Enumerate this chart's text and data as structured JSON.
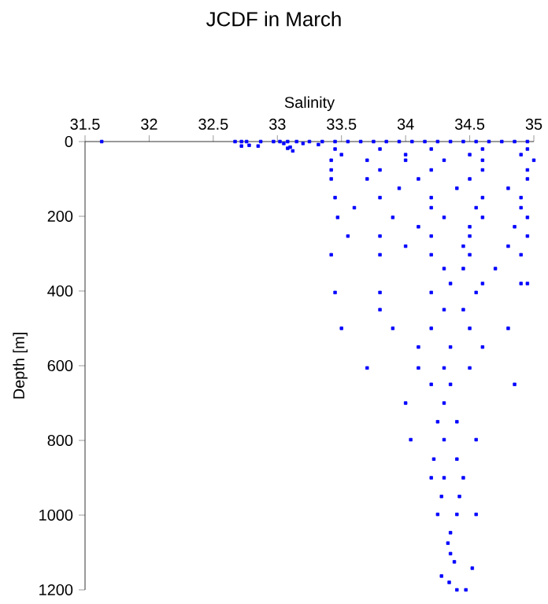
{
  "chart_data": {
    "type": "scatter",
    "title": "JCDF in March",
    "xlabel": "Salinity",
    "ylabel": "Depth [m]",
    "color": "#0000ff",
    "marker": "square",
    "grid": false,
    "xlim": [
      31.5,
      35
    ],
    "xticks": [
      31.5,
      32,
      32.5,
      33,
      33.5,
      34,
      34.5,
      35
    ],
    "ylim": [
      1200,
      0
    ],
    "yticks": [
      0,
      200,
      400,
      600,
      800,
      1000,
      1200
    ],
    "x": [
      31.63,
      32.67,
      32.72,
      32.76,
      32.87,
      32.97,
      33.02,
      33.08,
      33.15,
      33.25,
      33.35,
      33.45,
      33.55,
      33.65,
      33.75,
      33.85,
      33.95,
      34.05,
      34.15,
      34.25,
      34.35,
      34.45,
      34.55,
      34.65,
      34.75,
      34.85,
      34.95,
      32.72,
      32.78,
      32.85,
      33.05,
      33.08,
      33.12,
      33.1,
      33.32,
      33.2,
      33.45,
      33.8,
      34.2,
      34.6,
      34.95,
      33.5,
      34.0,
      34.5,
      34.9,
      33.42,
      33.7,
      34.0,
      34.3,
      34.6,
      35.0,
      33.42,
      33.8,
      34.2,
      34.6,
      34.95,
      33.42,
      33.7,
      34.1,
      34.5,
      34.95,
      33.95,
      34.4,
      34.8,
      33.45,
      33.8,
      34.2,
      34.6,
      34.9,
      33.6,
      34.2,
      34.55,
      34.9,
      33.47,
      33.9,
      34.3,
      34.6,
      34.95,
      34.1,
      34.5,
      34.85,
      33.55,
      33.8,
      34.2,
      34.5,
      34.95,
      34.0,
      34.45,
      34.8,
      33.42,
      33.8,
      34.2,
      34.5,
      34.9,
      34.3,
      34.45,
      34.7,
      34.35,
      34.6,
      34.9,
      34.95,
      33.45,
      33.8,
      34.2,
      34.55,
      33.8,
      34.3,
      34.45,
      33.5,
      33.9,
      34.2,
      34.5,
      34.8,
      34.1,
      34.35,
      34.6,
      33.7,
      34.1,
      34.3,
      34.5,
      34.2,
      34.35,
      34.85,
      34.0,
      34.3,
      34.25,
      34.4,
      34.04,
      34.3,
      34.55,
      34.22,
      34.4,
      34.2,
      34.3,
      34.45,
      34.28,
      34.42,
      34.25,
      34.4,
      34.55,
      34.35,
      34.33,
      34.35,
      34.38,
      34.52,
      34.28,
      34.34,
      34.4,
      34.47
    ],
    "values": [
      0,
      0,
      0,
      0,
      0,
      0,
      0,
      0,
      0,
      0,
      0,
      0,
      0,
      0,
      0,
      0,
      0,
      0,
      0,
      0,
      0,
      0,
      0,
      0,
      0,
      0,
      0,
      12,
      10,
      12,
      5,
      18,
      25,
      15,
      8,
      5,
      20,
      20,
      20,
      20,
      20,
      35,
      35,
      35,
      35,
      50,
      50,
      50,
      50,
      50,
      50,
      76,
      76,
      76,
      76,
      76,
      100,
      100,
      100,
      100,
      100,
      125,
      125,
      125,
      150,
      150,
      150,
      150,
      150,
      177,
      177,
      177,
      177,
      203,
      203,
      203,
      203,
      203,
      228,
      228,
      228,
      253,
      253,
      253,
      253,
      253,
      280,
      280,
      280,
      303,
      303,
      303,
      303,
      303,
      340,
      340,
      340,
      380,
      380,
      380,
      380,
      404,
      404,
      404,
      404,
      450,
      450,
      450,
      500,
      500,
      500,
      500,
      500,
      550,
      550,
      550,
      606,
      606,
      606,
      606,
      650,
      650,
      650,
      700,
      700,
      750,
      750,
      798,
      798,
      798,
      850,
      850,
      900,
      900,
      900,
      950,
      950,
      998,
      998,
      998,
      1047,
      1075,
      1103,
      1125,
      1142,
      1163,
      1180,
      1200,
      1200
    ]
  }
}
